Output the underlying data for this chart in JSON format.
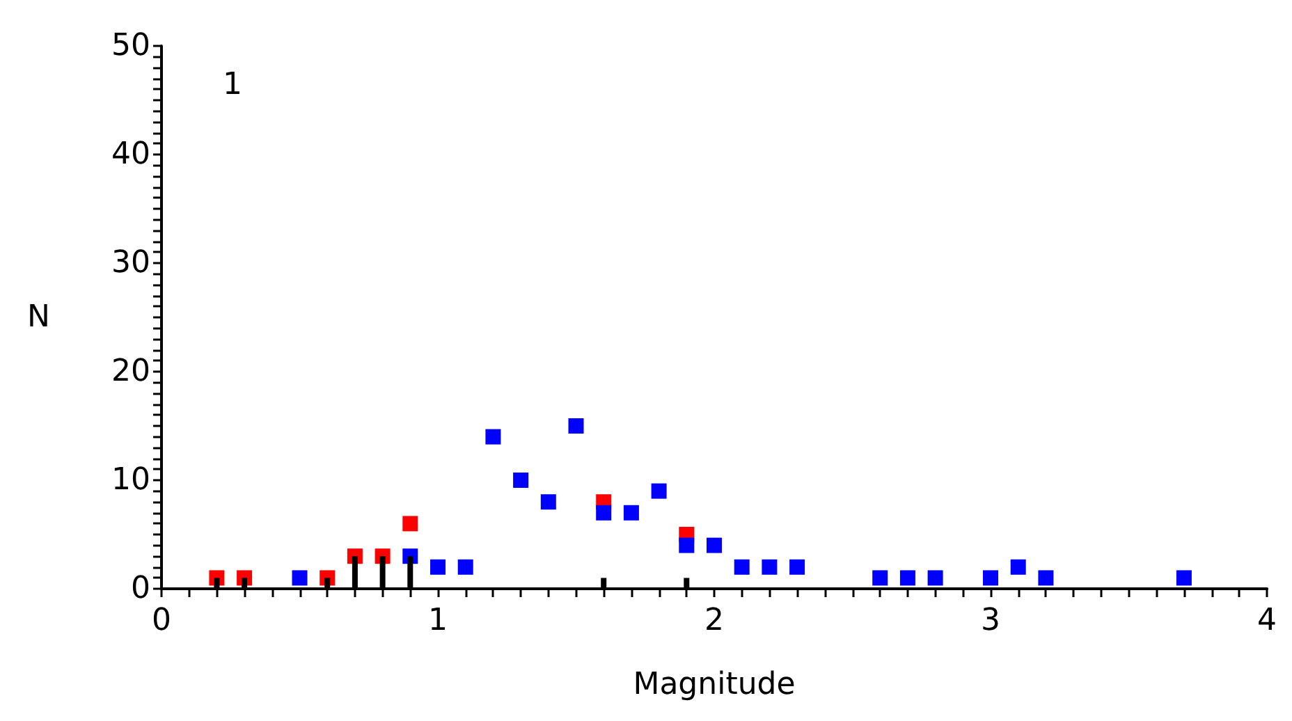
{
  "chart_data": {
    "type": "scatter",
    "xlabel": "Magnitude",
    "ylabel": "N",
    "annotations": [
      "1"
    ],
    "xlim": [
      0,
      4
    ],
    "ylim": [
      0,
      50
    ],
    "marker": "square",
    "grid": false,
    "xticks": [
      0,
      {
        "value": 0.1,
        "label": null
      },
      {
        "value": 0.2,
        "label": null
      },
      {
        "value": 0.3,
        "label": null
      },
      {
        "value": 0.4,
        "label": null
      },
      {
        "value": 0.5,
        "label": null
      },
      {
        "value": 0.6,
        "label": null
      },
      {
        "value": 0.7,
        "label": null
      },
      {
        "value": 0.8,
        "label": null
      },
      {
        "value": 0.9,
        "label": null
      },
      1,
      {
        "value": 1.1,
        "label": null
      },
      {
        "value": 1.2,
        "label": null
      },
      {
        "value": 1.3,
        "label": null
      },
      {
        "value": 1.4,
        "label": null
      },
      {
        "value": 1.5,
        "label": null
      },
      {
        "value": 1.6,
        "label": null
      },
      {
        "value": 1.7,
        "label": null
      },
      {
        "value": 1.8,
        "label": null
      },
      {
        "value": 1.9,
        "label": null
      },
      2,
      {
        "value": 2.1,
        "label": null
      },
      {
        "value": 2.2,
        "label": null
      },
      {
        "value": 2.3,
        "label": null
      },
      {
        "value": 2.4,
        "label": null
      },
      {
        "value": 2.5,
        "label": null
      },
      {
        "value": 2.6,
        "label": null
      },
      {
        "value": 2.7,
        "label": null
      },
      {
        "value": 2.8,
        "label": null
      },
      {
        "value": 2.9,
        "label": null
      },
      3,
      {
        "value": 3.1,
        "label": null
      },
      {
        "value": 3.2,
        "label": null
      },
      {
        "value": 3.3,
        "label": null
      },
      {
        "value": 3.4,
        "label": null
      },
      {
        "value": 3.5,
        "label": null
      },
      {
        "value": 3.6,
        "label": null
      },
      {
        "value": 3.7,
        "label": null
      },
      {
        "value": 3.8,
        "label": null
      },
      {
        "value": 3.9,
        "label": null
      },
      4
    ],
    "yticks": [
      0,
      {
        "value": 1,
        "label": null
      },
      {
        "value": 2,
        "label": null
      },
      {
        "value": 3,
        "label": null
      },
      {
        "value": 4,
        "label": null
      },
      {
        "value": 5,
        "label": null
      },
      {
        "value": 6,
        "label": null
      },
      {
        "value": 7,
        "label": null
      },
      {
        "value": 8,
        "label": null
      },
      {
        "value": 9,
        "label": null
      },
      10,
      {
        "value": 11,
        "label": null
      },
      {
        "value": 12,
        "label": null
      },
      {
        "value": 13,
        "label": null
      },
      {
        "value": 14,
        "label": null
      },
      {
        "value": 15,
        "label": null
      },
      {
        "value": 16,
        "label": null
      },
      {
        "value": 17,
        "label": null
      },
      {
        "value": 18,
        "label": null
      },
      {
        "value": 19,
        "label": null
      },
      20,
      {
        "value": 21,
        "label": null
      },
      {
        "value": 22,
        "label": null
      },
      {
        "value": 23,
        "label": null
      },
      {
        "value": 24,
        "label": null
      },
      {
        "value": 25,
        "label": null
      },
      {
        "value": 26,
        "label": null
      },
      {
        "value": 27,
        "label": null
      },
      {
        "value": 28,
        "label": null
      },
      {
        "value": 29,
        "label": null
      },
      30,
      {
        "value": 31,
        "label": null
      },
      {
        "value": 32,
        "label": null
      },
      {
        "value": 33,
        "label": null
      },
      {
        "value": 34,
        "label": null
      },
      {
        "value": 35,
        "label": null
      },
      {
        "value": 36,
        "label": null
      },
      {
        "value": 37,
        "label": null
      },
      {
        "value": 38,
        "label": null
      },
      {
        "value": 39,
        "label": null
      },
      40,
      {
        "value": 41,
        "label": null
      },
      {
        "value": 42,
        "label": null
      },
      {
        "value": 43,
        "label": null
      },
      {
        "value": 44,
        "label": null
      },
      {
        "value": 45,
        "label": null
      },
      {
        "value": 46,
        "label": null
      },
      {
        "value": 47,
        "label": null
      },
      {
        "value": 48,
        "label": null
      },
      {
        "value": 49,
        "label": null
      },
      50
    ],
    "series": [
      {
        "type": "bar",
        "color": "#000000",
        "x": [
          0.2,
          0.3,
          0.6,
          0.7,
          0.8,
          0.9,
          1.6,
          1.9
        ],
        "values": [
          1,
          1,
          1,
          3,
          3,
          3,
          1,
          1
        ]
      },
      {
        "color": "#ff0000",
        "x": [
          0.2,
          0.3,
          0.6,
          0.7,
          0.8,
          0.9,
          1.6,
          1.9
        ],
        "values": [
          1,
          1,
          1,
          3,
          3,
          6,
          8,
          5
        ]
      },
      {
        "color": "#0000ff",
        "x": [
          0.5,
          0.9,
          1.0,
          1.1,
          1.2,
          1.3,
          1.4,
          1.5,
          1.6,
          1.7,
          1.8,
          1.9,
          2.0,
          2.1,
          2.2,
          2.3,
          2.6,
          2.7,
          2.8,
          3.0,
          3.1,
          3.2,
          3.7
        ],
        "values": [
          1,
          3,
          2,
          2,
          14,
          10,
          8,
          15,
          7,
          7,
          9,
          4,
          4,
          2,
          2,
          2,
          1,
          1,
          1,
          1,
          2,
          1,
          1
        ]
      }
    ]
  }
}
